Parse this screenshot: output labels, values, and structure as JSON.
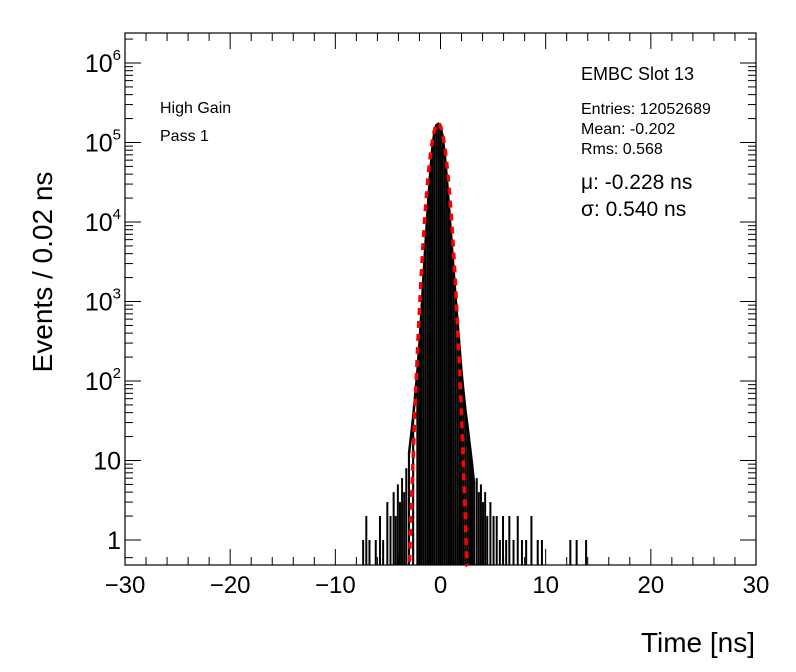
{
  "chart_data": {
    "type": "histogram",
    "x_axis": {
      "label": "Time [ns]",
      "range": [
        -30,
        30
      ],
      "major_ticks": [
        -30,
        -20,
        -10,
        0,
        10,
        20,
        30
      ],
      "tick_labels": [
        "−30",
        "−20",
        "−10",
        "0",
        "10",
        "20",
        "30"
      ]
    },
    "y_axis": {
      "label": "Events / 0.02 ns",
      "scale": "log",
      "range": [
        0.6,
        2200000
      ],
      "tick_labels": [
        {
          "value": 1,
          "text": "1",
          "sup": ""
        },
        {
          "value": 10,
          "text": "10",
          "sup": ""
        },
        {
          "value": 100,
          "text": "10",
          "sup": "2"
        },
        {
          "value": 1000,
          "text": "10",
          "sup": "3"
        },
        {
          "value": 10000,
          "text": "10",
          "sup": "4"
        },
        {
          "value": 100000,
          "text": "10",
          "sup": "5"
        },
        {
          "value": 1000000,
          "text": "10",
          "sup": "6"
        }
      ]
    },
    "labels": {
      "gain": "High Gain",
      "pass": "Pass 1",
      "title": "EMBC Slot 13",
      "entries": "Entries: 12052689",
      "mean": "Mean: -0.202",
      "rms": "Rms: 0.568",
      "mu": "μ: -0.228 ns",
      "sigma": "σ: 0.540 ns"
    },
    "histogram_core": {
      "x": [
        -3.0,
        -2.6,
        -2.2,
        -2.0,
        -1.8,
        -1.6,
        -1.4,
        -1.2,
        -1.0,
        -0.8,
        -0.6,
        -0.4,
        -0.2,
        0.0,
        0.2,
        0.4,
        0.6,
        0.8,
        1.0,
        1.2,
        1.4,
        1.6,
        1.8,
        2.0,
        2.2,
        2.4,
        2.6,
        2.8,
        3.0,
        3.2
      ],
      "y": [
        12,
        35,
        130,
        300,
        800,
        2300,
        6000,
        16000,
        38000,
        80000,
        130000,
        165000,
        172000,
        160000,
        120000,
        72000,
        36000,
        16000,
        7000,
        3000,
        1300,
        600,
        280,
        130,
        70,
        40,
        25,
        15,
        9,
        5
      ]
    },
    "histogram_tail_bins": {
      "x": [
        -7.4,
        -7.1,
        -6.8,
        -6.2,
        -5.8,
        -5.5,
        -5.1,
        -4.8,
        -4.5,
        -4.3,
        -4.1,
        -3.9,
        -3.7,
        -3.5,
        -3.3,
        3.4,
        3.6,
        3.8,
        4.0,
        4.2,
        4.4,
        4.7,
        5.0,
        5.3,
        5.6,
        5.9,
        6.2,
        6.5,
        6.9,
        7.3,
        7.7,
        8.1,
        8.6,
        9.2,
        9.6,
        12.3,
        12.9,
        13.8
      ],
      "y": [
        1,
        2,
        1,
        1,
        2,
        1,
        3,
        2,
        4,
        2,
        5,
        3,
        6,
        4,
        8,
        6,
        4,
        5,
        3,
        4,
        2,
        3,
        2,
        2,
        1,
        2,
        1,
        2,
        1,
        2,
        1,
        1,
        2,
        1,
        1,
        1,
        1,
        1
      ]
    },
    "gaussian_fit": {
      "mu": -0.228,
      "sigma": 0.54,
      "amplitude": 175000,
      "range": [
        -2.95,
        2.55
      ],
      "style": "dashed-red"
    },
    "colors": {
      "histogram": "#000000",
      "fit": "#ff0000",
      "axes": "#000000"
    },
    "grid": false,
    "legend": "none"
  }
}
